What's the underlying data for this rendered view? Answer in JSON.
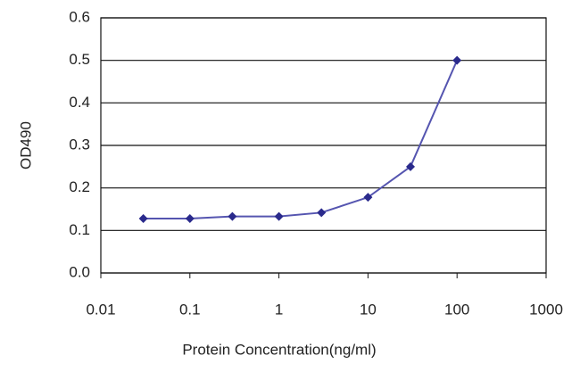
{
  "chart_data": {
    "type": "line",
    "x_label": "Protein Concentration(ng/ml)",
    "y_label": "OD490",
    "xscale": "log",
    "x": [
      0.03,
      0.1,
      0.3,
      1,
      3,
      10,
      30,
      100
    ],
    "series": [
      {
        "color": "#2a2a8c",
        "values": [
          0.128,
          0.128,
          0.133,
          0.133,
          0.142,
          0.178,
          0.25,
          0.5
        ]
      }
    ],
    "xlim": [
      0.01,
      1000
    ],
    "xticks": [
      0.01,
      0.1,
      1,
      10,
      100,
      1000
    ],
    "ylim": [
      0,
      0.6
    ],
    "yticks": [
      {
        "value": 0,
        "label": "0.0"
      },
      0.1,
      0.2,
      0.3,
      0.4,
      0.5,
      0.6
    ],
    "grid": true
  }
}
